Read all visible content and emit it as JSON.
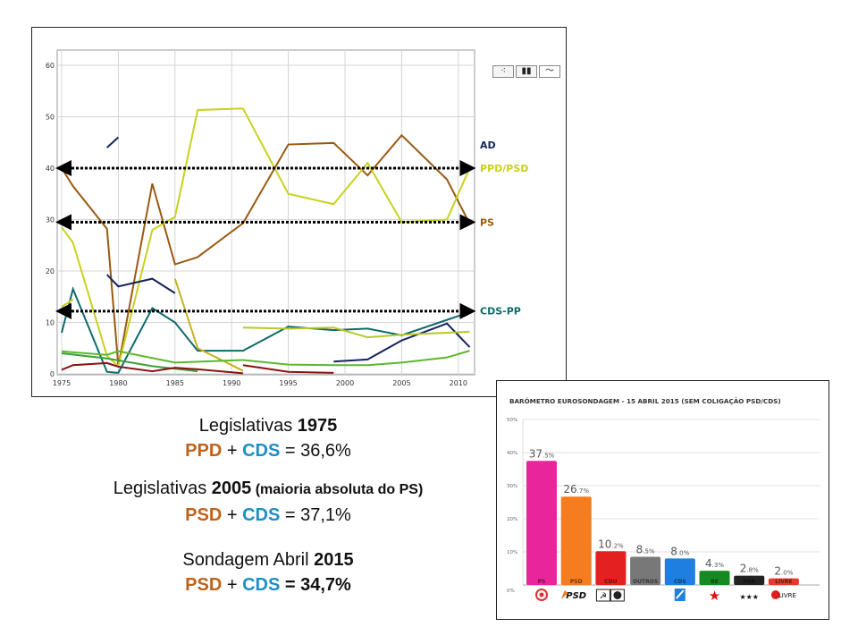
{
  "line_toolbar": {
    "icons": [
      "scatter-icon",
      "bar-chart-icon",
      "line-chart-icon"
    ]
  },
  "chart_data": [
    {
      "type": "line",
      "title": "",
      "xlabel": "",
      "ylabel": "",
      "xlim": [
        1975,
        2011
      ],
      "ylim": [
        0,
        62
      ],
      "x_ticks": [
        "1975",
        "1980",
        "1985",
        "1990",
        "1995",
        "2000",
        "2005",
        "2010"
      ],
      "y_ticks": [
        "0",
        "10",
        "20",
        "30",
        "40",
        "50",
        "60"
      ],
      "grid": true,
      "legend_placement": "right",
      "series": [
        {
          "name": "PS",
          "color": "#9a5a10",
          "points": [
            [
              1975,
              40
            ],
            [
              1976,
              36.5
            ],
            [
              1979,
              28.2
            ],
            [
              1980,
              1.5
            ],
            [
              1983,
              37
            ],
            [
              1985,
              21.3
            ],
            [
              1987,
              22.7
            ],
            [
              1991,
              29.3
            ],
            [
              1995,
              44.6
            ],
            [
              1999,
              44.9
            ],
            [
              2002,
              38.6
            ],
            [
              2005,
              46.4
            ],
            [
              2009,
              37.8
            ],
            [
              2011,
              29.2
            ]
          ]
        },
        {
          "name": "PPD/PSD",
          "color": "#c8d21e",
          "points": [
            [
              1975,
              28.5
            ],
            [
              1976,
              25.5
            ],
            [
              1979,
              3.5
            ],
            [
              1980,
              1.5
            ],
            [
              1983,
              28
            ],
            [
              1985,
              30.5
            ],
            [
              1987,
              51.3
            ],
            [
              1991,
              51.6
            ],
            [
              1995,
              35
            ],
            [
              1999,
              33
            ],
            [
              2002,
              41
            ],
            [
              2005,
              29.5
            ],
            [
              2009,
              30
            ],
            [
              2011,
              40
            ]
          ]
        },
        {
          "name": "CDS-PP",
          "color": "#0f6a6a",
          "points": [
            [
              1975,
              8
            ],
            [
              1976,
              16.5
            ],
            [
              1979,
              0.4
            ],
            [
              1980,
              0.2
            ],
            [
              1983,
              12.8
            ],
            [
              1985,
              10
            ],
            [
              1987,
              4.5
            ],
            [
              1991,
              4.5
            ],
            [
              1995,
              9.2
            ],
            [
              1999,
              8.5
            ],
            [
              2002,
              8.8
            ],
            [
              2005,
              7.5
            ],
            [
              2009,
              10.5
            ],
            [
              2011,
              12
            ]
          ]
        },
        {
          "name": "AD",
          "color": "#14245e",
          "points": [
            [
              1979,
              44
            ],
            [
              1980,
              46
            ]
          ]
        },
        {
          "color": "#14245e",
          "points": [
            [
              1979,
              19.3
            ],
            [
              1980,
              17
            ],
            [
              1983,
              18.5
            ],
            [
              1985,
              15.7
            ]
          ]
        },
        {
          "color": "#14245e",
          "points": [
            [
              1999,
              2.4
            ],
            [
              2002,
              2.8
            ],
            [
              2005,
              6.5
            ],
            [
              2009,
              9.8
            ],
            [
              2011,
              5.2
            ]
          ]
        },
        {
          "color": "#b8c82a",
          "points": [
            [
              1991,
              9
            ],
            [
              1995,
              8.8
            ],
            [
              1999,
              9
            ],
            [
              2002,
              7.1
            ],
            [
              2005,
              7.6
            ],
            [
              2009,
              8
            ],
            [
              2011,
              8.2
            ]
          ]
        },
        {
          "color": "#c8b020",
          "points": [
            [
              1985,
              18.5
            ],
            [
              1987,
              5
            ],
            [
              1991,
              0.6
            ]
          ]
        },
        {
          "color": "#c8d21e",
          "points": [
            [
              1975,
              13
            ],
            [
              1976,
              14.5
            ]
          ]
        },
        {
          "color": "#5cb82e",
          "points": [
            [
              1975,
              4.4
            ],
            [
              1976,
              4.2
            ],
            [
              1979,
              3.7
            ],
            [
              1980,
              4.4
            ],
            [
              1985,
              2.2
            ],
            [
              1991,
              2.7
            ],
            [
              1995,
              1.8
            ],
            [
              1999,
              1.7
            ],
            [
              2002,
              1.7
            ],
            [
              2005,
              2.2
            ],
            [
              2009,
              3.2
            ],
            [
              2011,
              4.5
            ]
          ]
        },
        {
          "color": "#3aa03a",
          "points": [
            [
              1975,
              4
            ],
            [
              1979,
              3
            ],
            [
              1983,
              1.5
            ],
            [
              1987,
              0.5
            ]
          ]
        },
        {
          "color": "#8a1010",
          "points": [
            [
              1975,
              0.8
            ],
            [
              1976,
              1.7
            ],
            [
              1979,
              2.1
            ],
            [
              1980,
              1.4
            ],
            [
              1983,
              0.5
            ],
            [
              1985,
              1.2
            ],
            [
              1987,
              0.9
            ],
            [
              1991,
              0.1
            ]
          ]
        },
        {
          "color": "#8a1010",
          "points": [
            [
              1991,
              1.7
            ],
            [
              1995,
              0.4
            ],
            [
              1999,
              0.2
            ]
          ]
        }
      ],
      "annotations": [
        {
          "type": "double-arrow",
          "y": 40,
          "x": [
            1975,
            2011
          ]
        },
        {
          "type": "double-arrow",
          "y": 29.5,
          "x": [
            1975,
            2011
          ]
        },
        {
          "type": "double-arrow",
          "y": 12.2,
          "x": [
            1975,
            2011
          ]
        }
      ],
      "legend_labels": [
        {
          "name": "AD",
          "color": "#14245e"
        },
        {
          "name": "PPD/PSD",
          "color": "#c8d21e"
        },
        {
          "name": "PS",
          "color": "#9a5a10"
        },
        {
          "name": "CDS-PP",
          "color": "#0f6a6a"
        }
      ]
    },
    {
      "type": "bar",
      "title": "BARÓMETRO EUROSONDAGEM - 15 ABRIL 2015 (SEM COLIGAÇÃO PSD/CDS)",
      "xlabel": "",
      "ylabel": "",
      "ylim": [
        0,
        50
      ],
      "y_ticks": [
        "0%",
        "10%",
        "20%",
        "30%",
        "40%",
        "50%"
      ],
      "grid": true,
      "categories": [
        "PS",
        "PSD",
        "CDU",
        "OUTROS",
        "CDS",
        "BE",
        "PDR",
        "LIVRE"
      ],
      "values": [
        37.5,
        26.7,
        10.2,
        8.5,
        8.0,
        4.3,
        2.8,
        2.0
      ],
      "value_labels": [
        [
          "37",
          ".5%"
        ],
        [
          "26",
          ".7%"
        ],
        [
          "10",
          ".2%"
        ],
        [
          "8",
          ".5%"
        ],
        [
          "8",
          ".0%"
        ],
        [
          "4",
          ".3%"
        ],
        [
          "2",
          ".8%"
        ],
        [
          "2",
          ".0%"
        ]
      ],
      "colors": [
        "#e8259a",
        "#f57c1f",
        "#e52020",
        "#787878",
        "#1f7fe0",
        "#158a22",
        "#222222",
        "#e53a2a"
      ],
      "logos": [
        "ps-logo",
        "psd-logo",
        "cdu-logo",
        "",
        "cds-logo",
        "be-logo",
        "pdr-logo",
        "livre-logo"
      ],
      "logo_text": {
        "psd": "PSD",
        "livre": "LIVRE"
      }
    }
  ],
  "notes": {
    "l1": {
      "a": "Legislativas ",
      "b": "1975"
    },
    "l2": {
      "a": "PPD",
      "b": " + ",
      "c": "CDS",
      "d": " = 36,6%"
    },
    "l3": {
      "a": "Legislativas ",
      "b": "2005",
      "c": " (maioria absoluta do PS)"
    },
    "l4": {
      "a": "PSD",
      "b": " + ",
      "c": "CDS",
      "d": " = 37,1%"
    },
    "l5": {
      "a": "Sondagem Abril ",
      "b": "2015"
    },
    "l6": {
      "a": "PSD",
      "b": " + ",
      "c": "CDS",
      "d": " = 34,7%"
    }
  }
}
